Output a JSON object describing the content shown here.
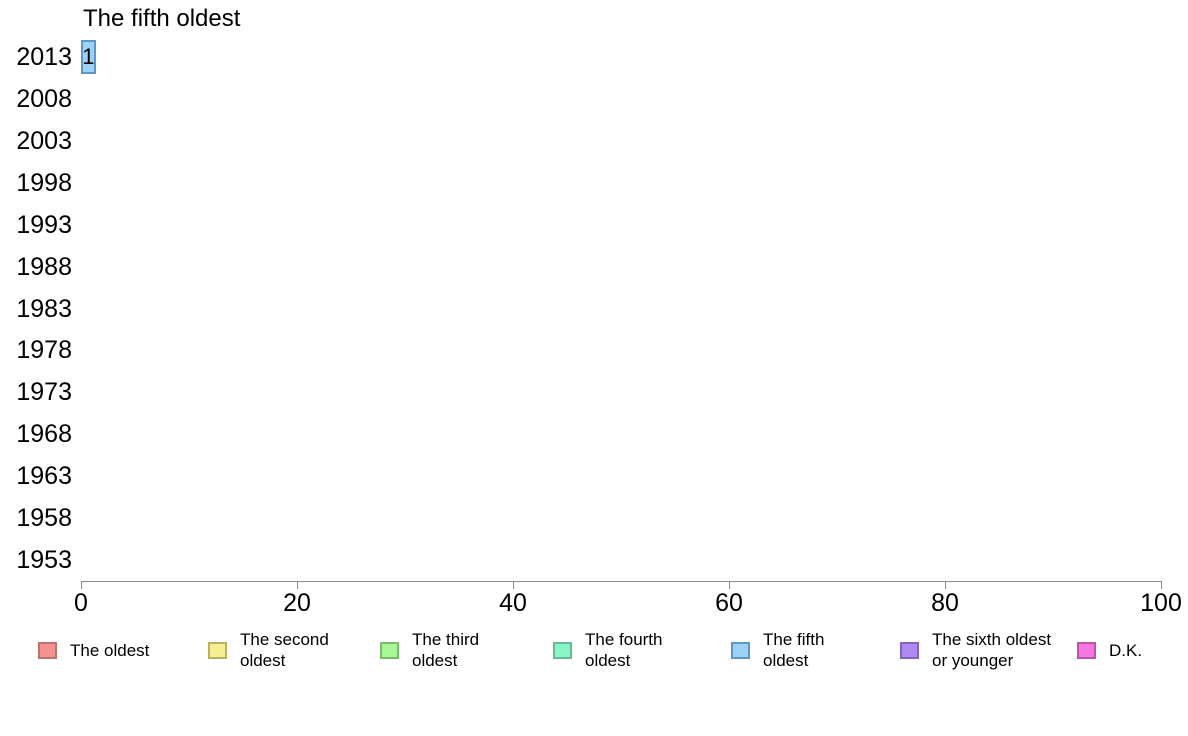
{
  "chart_data": {
    "type": "bar",
    "orientation": "horizontal",
    "title": "The fifth oldest",
    "xlabel": "",
    "ylabel": "",
    "xlim": [
      0,
      100
    ],
    "x_ticks": [
      0,
      20,
      40,
      60,
      80,
      100
    ],
    "grid": false,
    "legend_position": "bottom",
    "bar_value_labels": true,
    "categories": [
      "2013",
      "2008",
      "2003",
      "1998",
      "1993",
      "1988",
      "1983",
      "1978",
      "1973",
      "1968",
      "1963",
      "1958",
      "1953"
    ],
    "series": [
      {
        "name": "The oldest",
        "fill": "#f59191",
        "border": "#ba7272",
        "values": [
          0,
          0,
          0,
          0,
          0,
          0,
          0,
          0,
          0,
          0,
          0,
          0,
          0
        ]
      },
      {
        "name": "The second oldest",
        "fill": "#f8ee8f",
        "border": "#b9b163",
        "values": [
          0,
          0,
          0,
          0,
          0,
          0,
          0,
          0,
          0,
          0,
          0,
          0,
          0
        ]
      },
      {
        "name": "The third oldest",
        "fill": "#a8f795",
        "border": "#7cba6e",
        "values": [
          0,
          0,
          0,
          0,
          0,
          0,
          0,
          0,
          0,
          0,
          0,
          0,
          0
        ]
      },
      {
        "name": "The fourth oldest",
        "fill": "#87f5c8",
        "border": "#65ba97",
        "values": [
          0,
          0,
          0,
          0,
          0,
          0,
          0,
          0,
          0,
          0,
          0,
          0,
          0
        ]
      },
      {
        "name": "The fifth oldest",
        "fill": "#9dd2f5",
        "border": "#5b97c9",
        "values": [
          1,
          0,
          0,
          0,
          0,
          0,
          0,
          0,
          0,
          0,
          0,
          0,
          0
        ]
      },
      {
        "name": "The sixth oldest or younger",
        "fill": "#ae89f2",
        "border": "#8264ba",
        "values": [
          0,
          0,
          0,
          0,
          0,
          0,
          0,
          0,
          0,
          0,
          0,
          0,
          0
        ]
      },
      {
        "name": "D.K.",
        "fill": "#f577e2",
        "border": "#ba55a9",
        "values": [
          0,
          0,
          0,
          0,
          0,
          0,
          0,
          0,
          0,
          0,
          0,
          0,
          0
        ]
      }
    ],
    "axis_color": "#8c8c8c"
  }
}
